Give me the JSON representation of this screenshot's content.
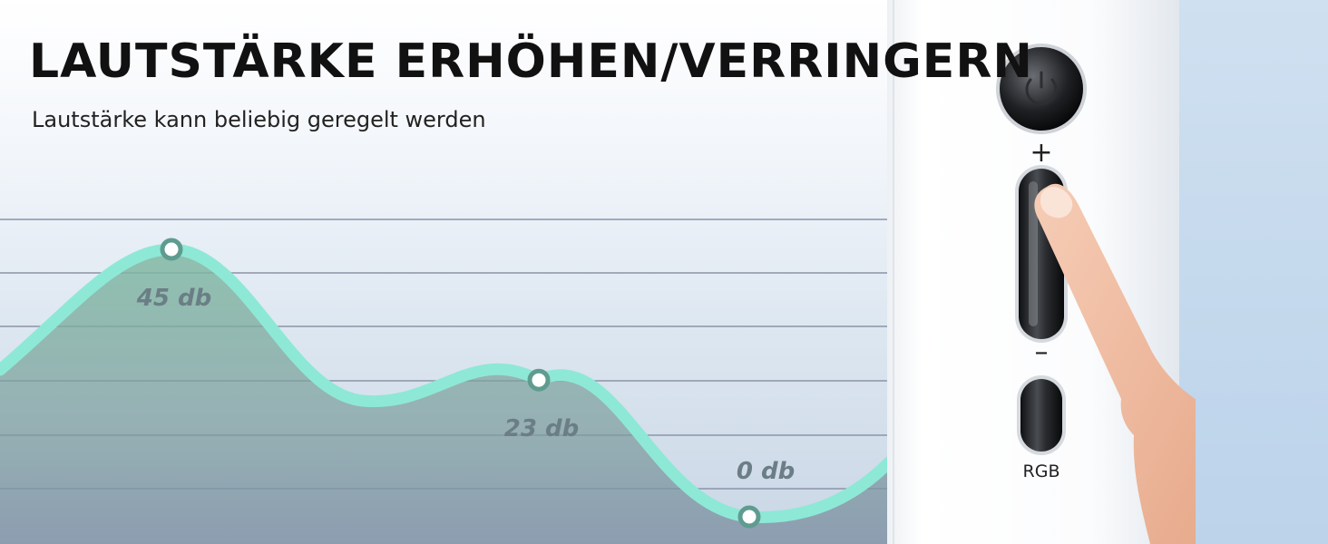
{
  "headline": "LAUTSTÄRKE ERHÖHEN/VERRINGERN",
  "subline": "Lautstärke kann beliebig geregelt werden",
  "chart_data": {
    "type": "area",
    "points": [
      {
        "label": "45 db",
        "value": 45
      },
      {
        "label": "23 db",
        "value": 23
      },
      {
        "label": "0 db",
        "value": 0
      }
    ],
    "grid": true,
    "line_color": "#8ee8d6",
    "fill_color": "#6f9d8f"
  },
  "device": {
    "plus_label": "+",
    "minus_label": "–",
    "rgb_label": "RGB",
    "power_icon": "power-icon"
  }
}
